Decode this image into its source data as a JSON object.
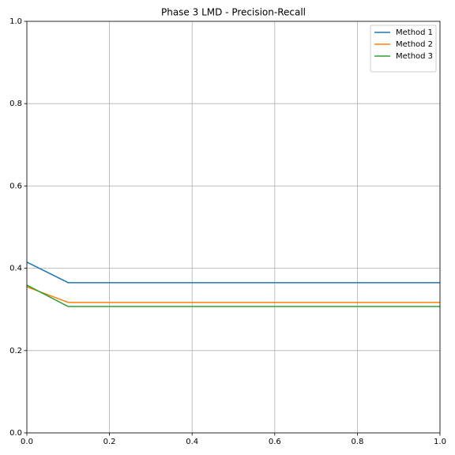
{
  "chart_data": {
    "type": "line",
    "title": "Phase 3 LMD - Precision-Recall",
    "x": [
      0,
      0.1,
      0.2,
      0.3,
      0.4,
      0.5,
      0.6,
      0.7,
      0.8,
      0.9,
      1.0
    ],
    "series": [
      {
        "name": "Method 1",
        "color": "#1f77b4",
        "values": [
          0.415,
          0.365,
          0.365,
          0.365,
          0.365,
          0.365,
          0.365,
          0.365,
          0.365,
          0.365,
          0.365
        ]
      },
      {
        "name": "Method 2",
        "color": "#ff7f0e",
        "values": [
          0.355,
          0.317,
          0.317,
          0.317,
          0.317,
          0.317,
          0.317,
          0.317,
          0.317,
          0.317,
          0.317
        ]
      },
      {
        "name": "Method 3",
        "color": "#2ca02c",
        "values": [
          0.359,
          0.307,
          0.307,
          0.307,
          0.307,
          0.307,
          0.307,
          0.307,
          0.307,
          0.307,
          0.307
        ]
      }
    ],
    "xlim": [
      0,
      1
    ],
    "ylim": [
      0,
      1
    ],
    "xticks": [
      {
        "value": 0,
        "label": "0.0"
      },
      0.2,
      0.4,
      0.6,
      0.8,
      {
        "value": 1,
        "label": "1.0"
      }
    ],
    "yticks": [
      {
        "value": 0,
        "label": "0.0"
      },
      0.2,
      0.4,
      0.6,
      0.8,
      {
        "value": 1,
        "label": "1.0"
      }
    ],
    "grid": true,
    "legend": "upper right"
  }
}
